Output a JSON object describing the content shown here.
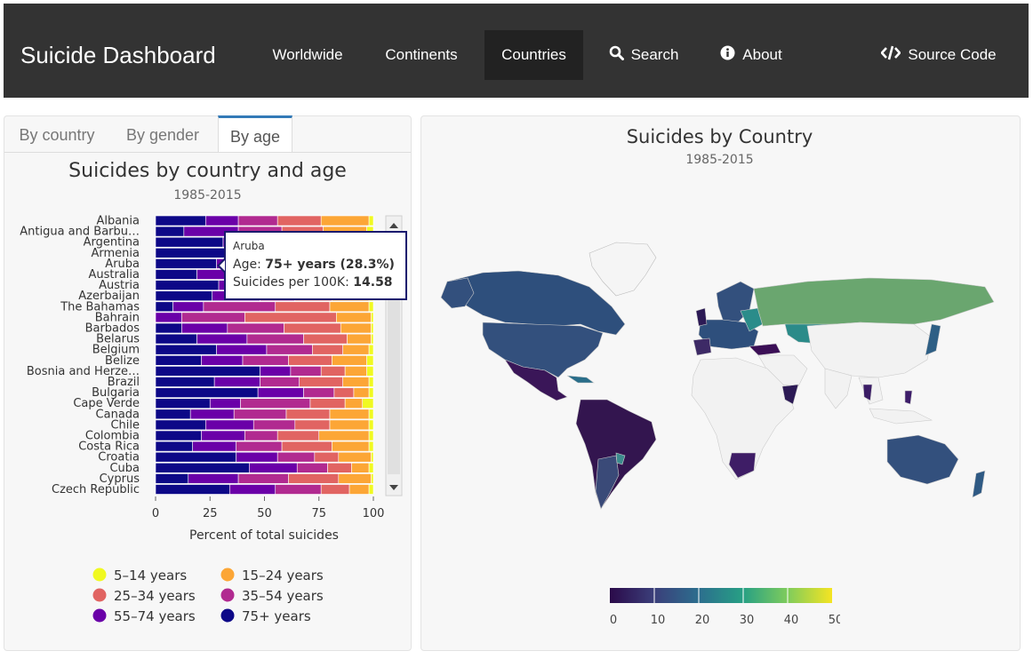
{
  "navbar": {
    "brand": "Suicide Dashboard",
    "items": [
      {
        "label": "Worldwide",
        "icon": ""
      },
      {
        "label": "Continents",
        "icon": ""
      },
      {
        "label": "Countries",
        "icon": ""
      },
      {
        "label": "Search",
        "icon": "search-icon"
      },
      {
        "label": "About",
        "icon": "info-circle-icon"
      },
      {
        "label": "Source Code",
        "icon": "code-icon"
      }
    ],
    "active": "Countries"
  },
  "left_panel": {
    "tabs": [
      "By country",
      "By gender",
      "By age"
    ],
    "active_tab": "By age"
  },
  "tooltip": {
    "country": "Aruba",
    "age_label": "Age:",
    "age_value": "75+ years (28.3%)",
    "rate_label": "Suicides per 100K:",
    "rate_value": "14.58"
  },
  "colors": {
    "navbar_bg": "#333333",
    "navbar_active": "#222222",
    "tab_accent": "#337ab7",
    "age_5_14": "#f0f921",
    "age_15_24": "#fca636",
    "age_25_34": "#e16462",
    "age_35_54": "#b12a90",
    "age_55_74": "#6a00a8",
    "age_75_plus": "#0d0887"
  },
  "chart_data": [
    {
      "type": "bar",
      "orientation": "horizontal-stacked",
      "title": "Suicides by country and age",
      "subtitle": "1985-2015",
      "xlabel": "Percent of total suicides",
      "xlim": [
        0,
        100
      ],
      "xticks": [
        0,
        25,
        50,
        75,
        100
      ],
      "categories": [
        "Albania",
        "Antigua and Barbu…",
        "Argentina",
        "Armenia",
        "Aruba",
        "Australia",
        "Austria",
        "Azerbaijan",
        "The Bahamas",
        "Bahrain",
        "Barbados",
        "Belarus",
        "Belgium",
        "Belize",
        "Bosnia and Herze…",
        "Brazil",
        "Bulgaria",
        "Cape Verde",
        "Canada",
        "Chile",
        "Colombia",
        "Costa Rica",
        "Croatia",
        "Cuba",
        "Cyprus",
        "Czech Republic"
      ],
      "series": [
        {
          "name": "75+ years",
          "values": [
            23,
            13,
            31,
            32,
            28,
            19,
            29,
            26,
            8,
            0,
            12,
            19,
            28,
            21,
            48,
            27,
            47,
            25,
            16,
            23,
            21,
            17,
            37,
            43,
            15,
            34
          ]
        },
        {
          "name": "55-74 years",
          "values": [
            15,
            25,
            23,
            25,
            26,
            30,
            26,
            22,
            14,
            12,
            21,
            23,
            23,
            19,
            14,
            21,
            21,
            14,
            20,
            22,
            20,
            20,
            19,
            22,
            23,
            21
          ]
        },
        {
          "name": "35-54 years",
          "values": [
            18,
            20,
            14,
            13,
            11,
            21,
            15,
            16,
            33,
            29,
            26,
            26,
            21,
            21,
            14,
            18,
            14,
            32,
            24,
            19,
            15,
            21,
            17,
            14,
            23,
            21
          ]
        },
        {
          "name": "25-34 years",
          "values": [
            20,
            19,
            14,
            14,
            15,
            16,
            14,
            17,
            25,
            42,
            26,
            20,
            14,
            20,
            11,
            20,
            9,
            16,
            20,
            16,
            19,
            23,
            11,
            11,
            23,
            13
          ]
        },
        {
          "name": "15-24 years",
          "values": [
            22,
            20,
            16,
            14,
            17,
            13,
            14,
            17,
            18,
            16,
            14,
            11,
            12,
            16,
            10,
            12,
            7,
            8,
            18,
            18,
            23,
            17,
            15,
            8,
            15,
            9
          ]
        },
        {
          "name": "5-14 years",
          "values": [
            2,
            3,
            2,
            2,
            3,
            1,
            2,
            2,
            2,
            1,
            1,
            1,
            2,
            3,
            3,
            2,
            2,
            5,
            2,
            2,
            2,
            2,
            1,
            2,
            1,
            2
          ]
        }
      ],
      "legend": [
        "5-14 years",
        "15-24 years",
        "25-34 years",
        "35-54 years",
        "55-74 years",
        "75+ years"
      ],
      "legend_position": "bottom"
    },
    {
      "type": "heatmap",
      "subtype": "choropleth",
      "title": "Suicides by Country",
      "subtitle": "1985-2015",
      "colorscale": "viridis",
      "colorbar_range": [
        0,
        50
      ],
      "colorbar_ticks": [
        0,
        10,
        20,
        30,
        40,
        50
      ],
      "colorbar_position": "bottom"
    }
  ]
}
